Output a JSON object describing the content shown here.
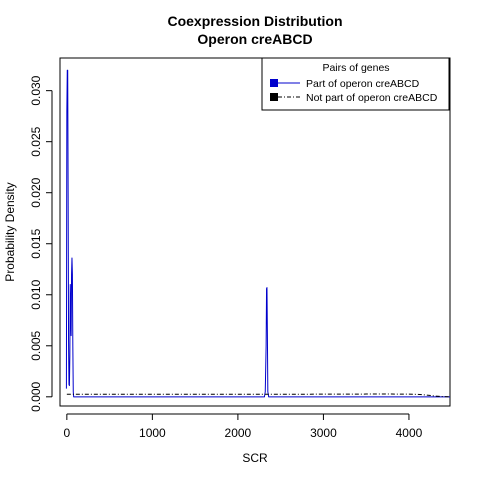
{
  "chart_data": {
    "type": "line",
    "title": [
      "Coexpression Distribution",
      "Operon creABCD"
    ],
    "xlabel": "SCR",
    "ylabel": "Probability Density",
    "xlim": [
      -80,
      4480
    ],
    "ylim": [
      -0.0009,
      0.0332
    ],
    "x_ticks": [
      0,
      1000,
      2000,
      3000,
      4000
    ],
    "x_tick_labels": [
      "0",
      "1000",
      "2000",
      "3000",
      "4000"
    ],
    "y_ticks": [
      0.0,
      0.005,
      0.01,
      0.015,
      0.02,
      0.025,
      0.03
    ],
    "y_tick_labels": [
      "0.000",
      "0.005",
      "0.010",
      "0.015",
      "0.020",
      "0.025",
      "0.030"
    ],
    "grid": false,
    "legend": {
      "title": "Pairs of genes",
      "position": "top-right",
      "entries": [
        "Part of operon creABCD",
        "Not part of operon creABCD"
      ]
    },
    "series": [
      {
        "name": "Part of operon creABCD",
        "color": "#0000cc",
        "dash": "solid",
        "x": [
          -5,
          0,
          5,
          10,
          15,
          20,
          25,
          30,
          35,
          40,
          45,
          50,
          55,
          60,
          65,
          70,
          75,
          80,
          85,
          90,
          100,
          200,
          500,
          1000,
          1500,
          2000,
          2300,
          2310,
          2320,
          2330,
          2335,
          2340,
          2345,
          2350,
          2360,
          2370,
          2400,
          3000,
          4000,
          4480
        ],
        "y": [
          0.0008,
          0.028,
          0.032,
          0.032,
          0.02,
          0.0055,
          0.0012,
          0.0011,
          0.004,
          0.011,
          0.0085,
          0.006,
          0.012,
          0.0136,
          0.012,
          0.005,
          0.0005,
          0.0,
          0.0,
          0.0,
          0.0,
          0.0,
          0.0,
          0.0,
          0.0,
          0.0,
          0.0,
          0.0,
          0.0005,
          0.005,
          0.0106,
          0.0107,
          0.006,
          0.0005,
          0.0,
          0.0,
          0.0,
          0.0,
          0.0,
          0.0
        ]
      },
      {
        "name": "Not part of operon creABCD",
        "color": "#000000",
        "dash": "dashdot",
        "x": [
          0,
          500,
          1000,
          1500,
          2000,
          2500,
          3000,
          3500,
          3800,
          4000,
          4100,
          4200,
          4300,
          4400,
          4480
        ],
        "y": [
          0.00025,
          0.00025,
          0.00025,
          0.00025,
          0.00025,
          0.00025,
          0.00026,
          0.00027,
          0.00027,
          0.00026,
          0.00024,
          0.00018,
          8e-05,
          2e-05,
          0.0
        ]
      }
    ]
  }
}
